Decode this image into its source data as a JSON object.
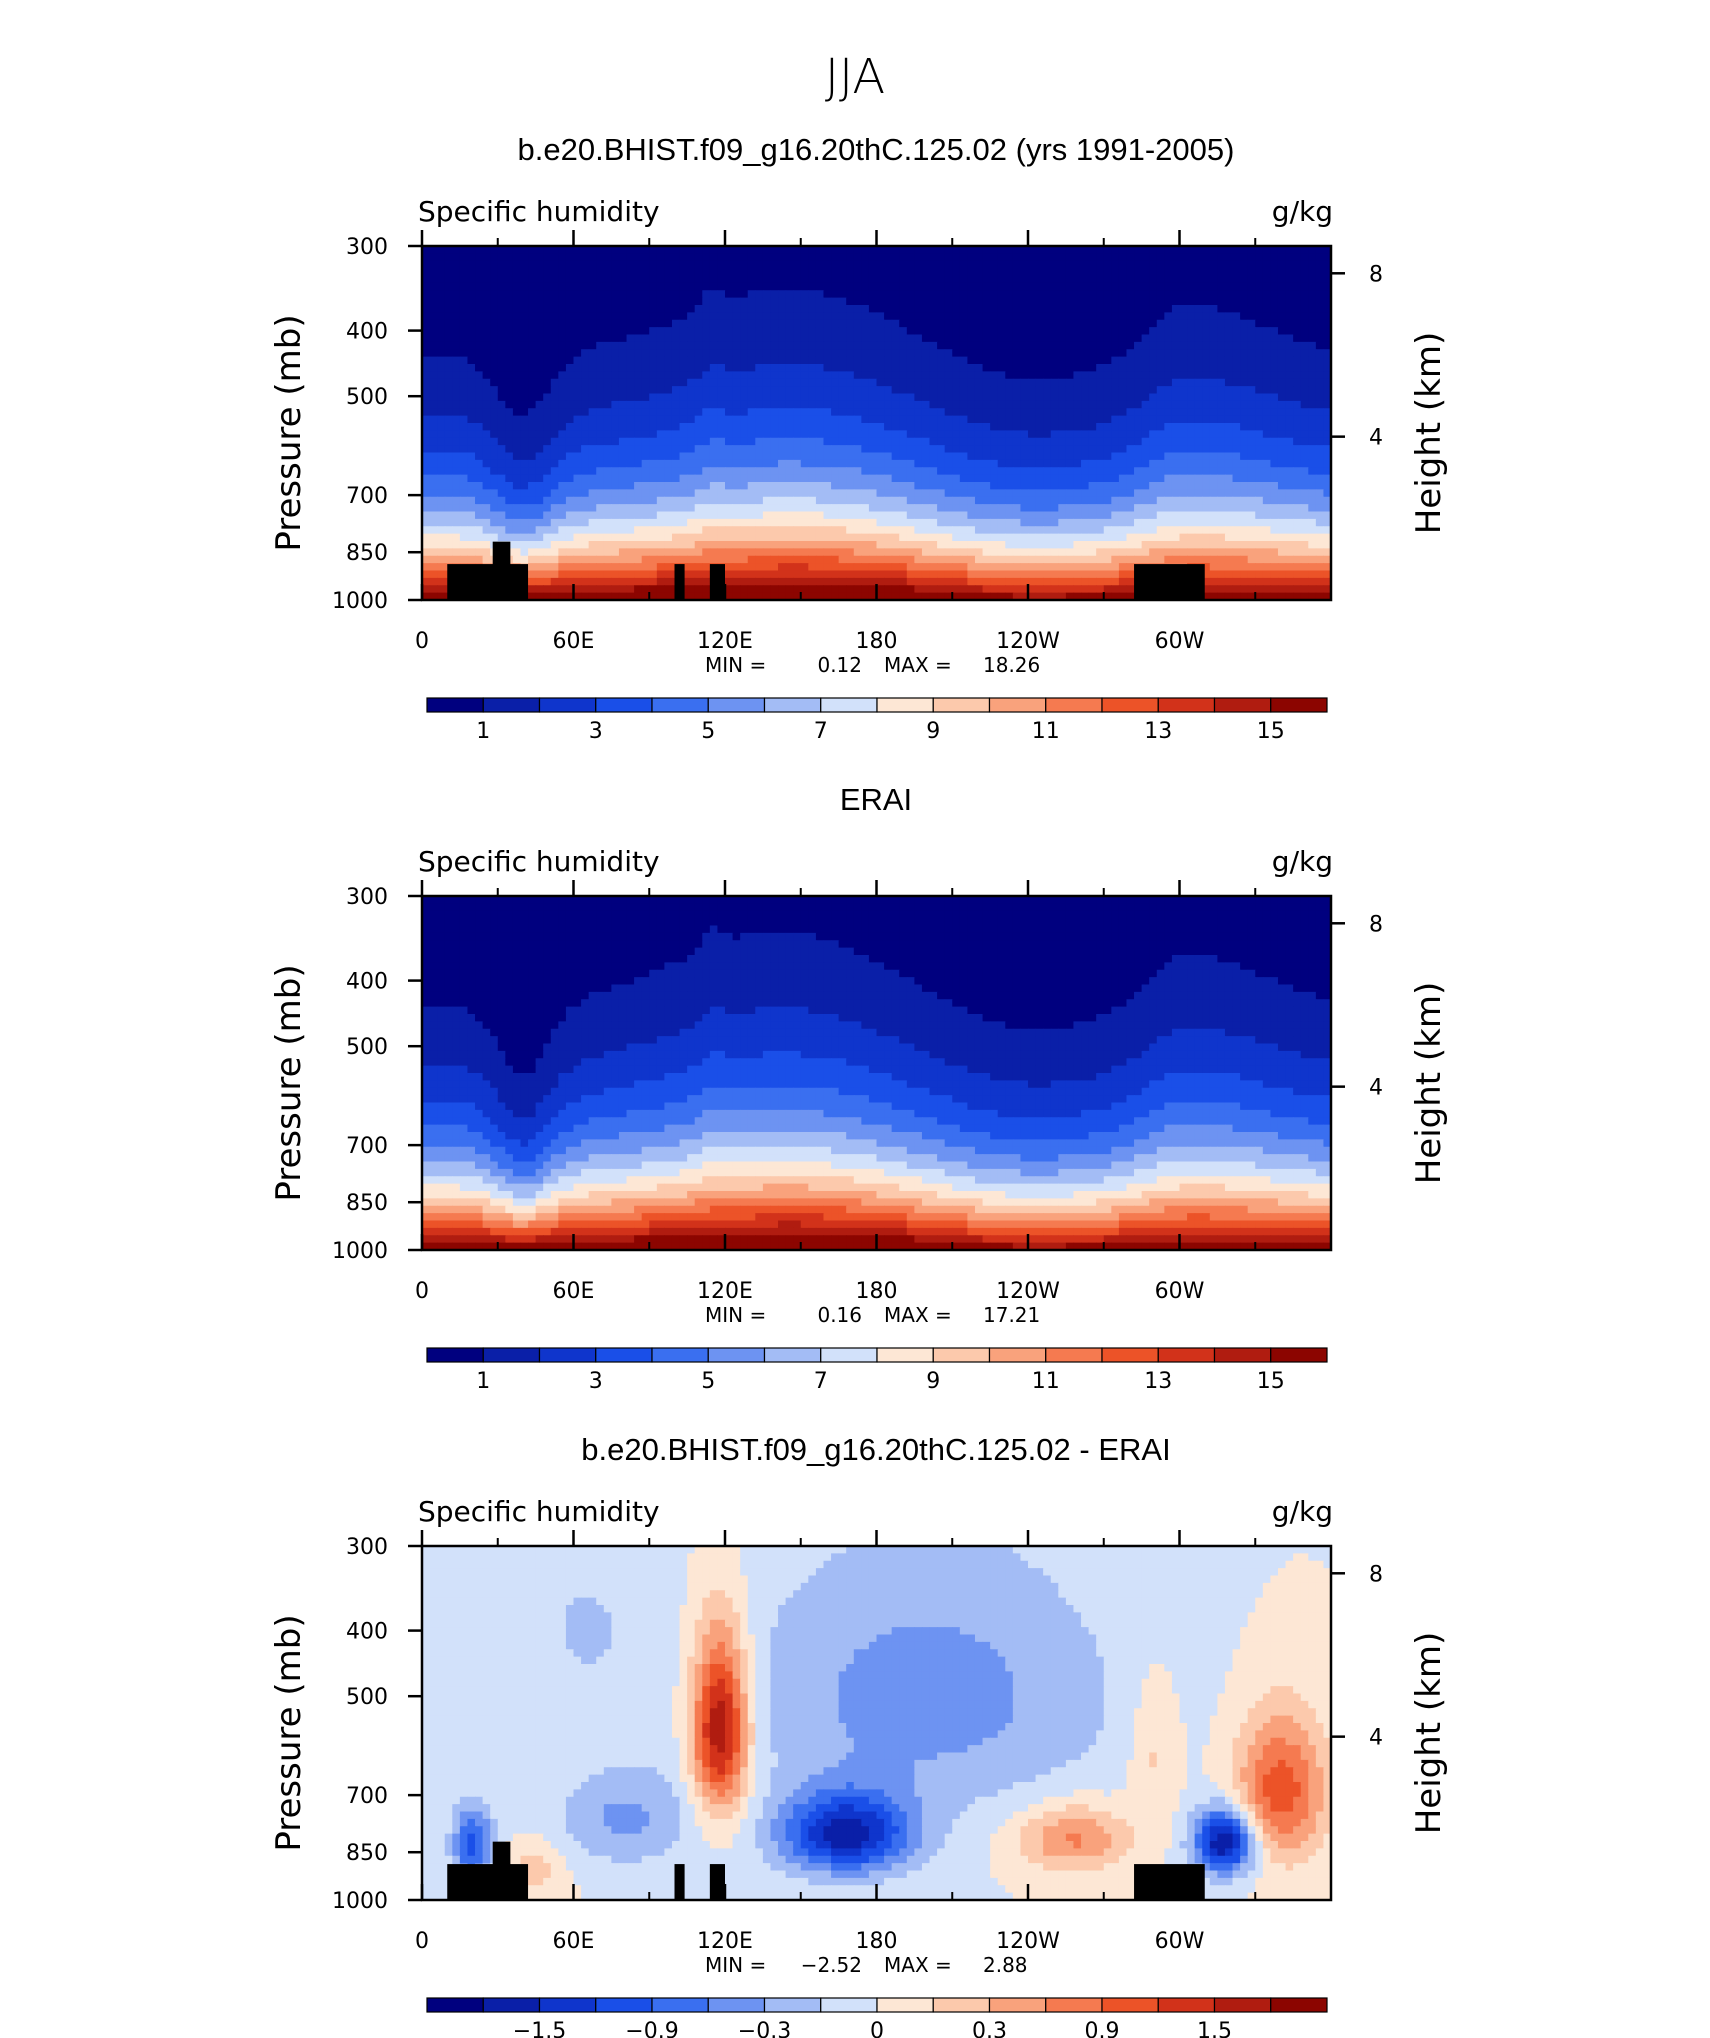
{
  "figure_title": "JJA",
  "chart_data": [
    {
      "type": "heatmap",
      "title": "b.e20.BHIST.f09_g16.20thC.125.02 (yrs 1991-2005)",
      "left_label": "Specific humidity",
      "right_label": "g/kg",
      "ylabel": "Pressure (mb)",
      "ylabel_right": "Height (km)",
      "xlabel": "",
      "x_ticks": [
        "0",
        "60E",
        "120E",
        "180",
        "120W",
        "60W"
      ],
      "x_tick_positions": [
        0,
        60,
        120,
        180,
        240,
        300
      ],
      "xlim": [
        0,
        360
      ],
      "y_ticks": [
        "300",
        "400",
        "500",
        "700",
        "850",
        "1000"
      ],
      "y_tick_values": [
        300,
        400,
        500,
        700,
        850,
        1000
      ],
      "ylim": [
        1000,
        300
      ],
      "y_scale": "log",
      "y_right_ticks": [
        "8",
        "4"
      ],
      "y_right_values": [
        8,
        4
      ],
      "min_label": "MIN =",
      "min_value": "0.12",
      "max_label": "MAX =",
      "max_value": "18.26",
      "colorbar_labels": [
        "1",
        "3",
        "5",
        "7",
        "9",
        "11",
        "13",
        "15"
      ],
      "colorbar_colors": [
        "#00007f",
        "#0a1fa8",
        "#0f35cc",
        "#1a4fe8",
        "#3a6ff0",
        "#6d93f2",
        "#a3bcf5",
        "#d2e1fa",
        "#fde7d5",
        "#fcc9ac",
        "#f9a27c",
        "#f57a50",
        "#ec5328",
        "#d2321a",
        "#b01c10",
        "#8c0500"
      ],
      "cmap": "blue-white-red",
      "topography": true
    },
    {
      "type": "heatmap",
      "title": "ERAI",
      "left_label": "Specific humidity",
      "right_label": "g/kg",
      "ylabel": "Pressure (mb)",
      "ylabel_right": "Height (km)",
      "xlabel": "",
      "x_ticks": [
        "0",
        "60E",
        "120E",
        "180",
        "120W",
        "60W"
      ],
      "x_tick_positions": [
        0,
        60,
        120,
        180,
        240,
        300
      ],
      "xlim": [
        0,
        360
      ],
      "y_ticks": [
        "300",
        "400",
        "500",
        "700",
        "850",
        "1000"
      ],
      "y_tick_values": [
        300,
        400,
        500,
        700,
        850,
        1000
      ],
      "ylim": [
        1000,
        300
      ],
      "y_scale": "log",
      "y_right_ticks": [
        "8",
        "4"
      ],
      "y_right_values": [
        8,
        4
      ],
      "min_label": "MIN =",
      "min_value": "0.16",
      "max_label": "MAX =",
      "max_value": "17.21",
      "colorbar_labels": [
        "1",
        "3",
        "5",
        "7",
        "9",
        "11",
        "13",
        "15"
      ],
      "colorbar_colors": [
        "#00007f",
        "#0a1fa8",
        "#0f35cc",
        "#1a4fe8",
        "#3a6ff0",
        "#6d93f2",
        "#a3bcf5",
        "#d2e1fa",
        "#fde7d5",
        "#fcc9ac",
        "#f9a27c",
        "#f57a50",
        "#ec5328",
        "#d2321a",
        "#b01c10",
        "#8c0500"
      ],
      "cmap": "blue-white-red",
      "topography": false
    },
    {
      "type": "heatmap",
      "title": "b.e20.BHIST.f09_g16.20thC.125.02 - ERAI",
      "left_label": "Specific humidity",
      "right_label": "g/kg",
      "ylabel": "Pressure (mb)",
      "ylabel_right": "Height (km)",
      "xlabel": "",
      "x_ticks": [
        "0",
        "60E",
        "120E",
        "180",
        "120W",
        "60W"
      ],
      "x_tick_positions": [
        0,
        60,
        120,
        180,
        240,
        300
      ],
      "xlim": [
        0,
        360
      ],
      "y_ticks": [
        "300",
        "400",
        "500",
        "700",
        "850",
        "1000"
      ],
      "y_tick_values": [
        300,
        400,
        500,
        700,
        850,
        1000
      ],
      "ylim": [
        1000,
        300
      ],
      "y_scale": "log",
      "y_right_ticks": [
        "8",
        "4"
      ],
      "y_right_values": [
        8,
        4
      ],
      "min_label": "MIN =",
      "min_value": "−2.52",
      "max_label": "MAX =",
      "max_value": "2.88",
      "colorbar_labels": [
        "−1.5",
        "−0.9",
        "−0.3",
        "0",
        "0.3",
        "0.9",
        "1.5"
      ],
      "colorbar_colors": [
        "#00007f",
        "#0a1fa8",
        "#0f35cc",
        "#1a4fe8",
        "#3a6ff0",
        "#6d93f2",
        "#a3bcf5",
        "#d2e1fa",
        "#fde7d5",
        "#fcc9ac",
        "#f9a27c",
        "#f57a50",
        "#ec5328",
        "#d2321a",
        "#b01c10",
        "#8c0500"
      ],
      "cmap": "blue-white-red",
      "topography": true
    }
  ]
}
